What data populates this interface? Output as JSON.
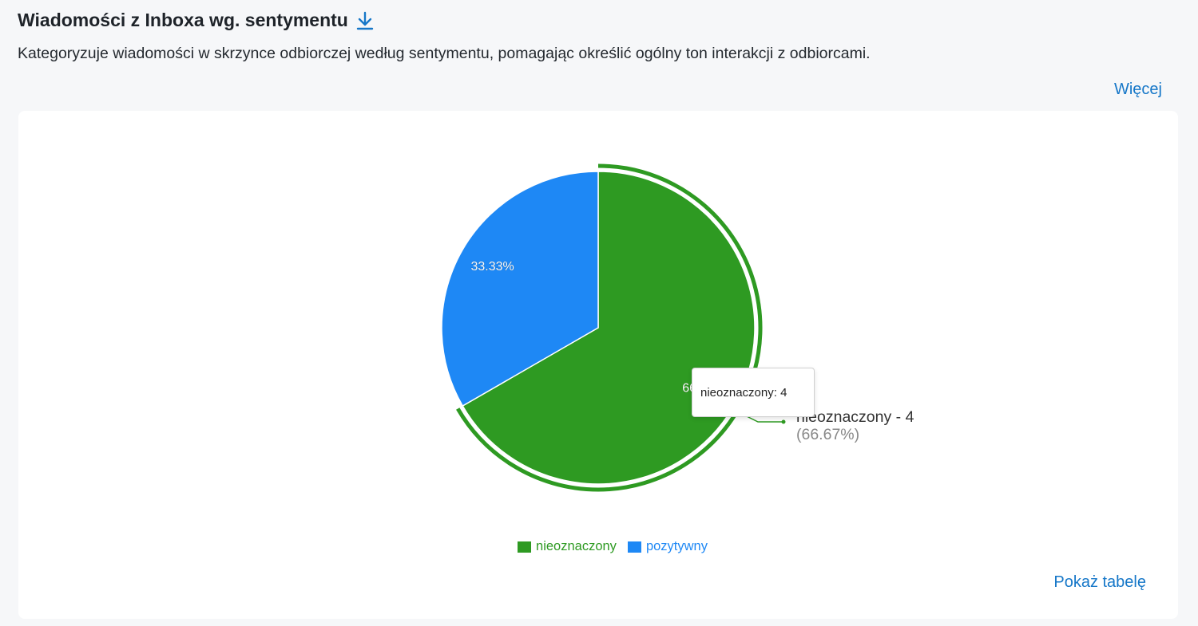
{
  "header": {
    "title": "Wiadomości z Inboxa wg. sentymentu",
    "description": "Kategoryzuje wiadomości w skrzynce odbiorczej według sentymentu, pomagając określić ogólny ton interakcji z odbiorcami.",
    "more_label": "Więcej",
    "download_icon": "download-icon"
  },
  "chart_data": {
    "type": "pie",
    "categories": [
      "nieoznaczony",
      "pozytywny"
    ],
    "values": [
      4,
      2
    ],
    "percent_labels": [
      "66.67%",
      "33.33%"
    ],
    "colors": [
      "#2e9a22",
      "#1e88f5"
    ],
    "highlighted": "nieoznaczony",
    "callout": {
      "label": "nieoznaczony - 4",
      "percent": "(66.67%)"
    },
    "tooltip": {
      "name": "nieoznaczony",
      "value": "4"
    },
    "legend_position": "bottom"
  },
  "footer": {
    "show_table_label": "Pokaż tabelę"
  }
}
